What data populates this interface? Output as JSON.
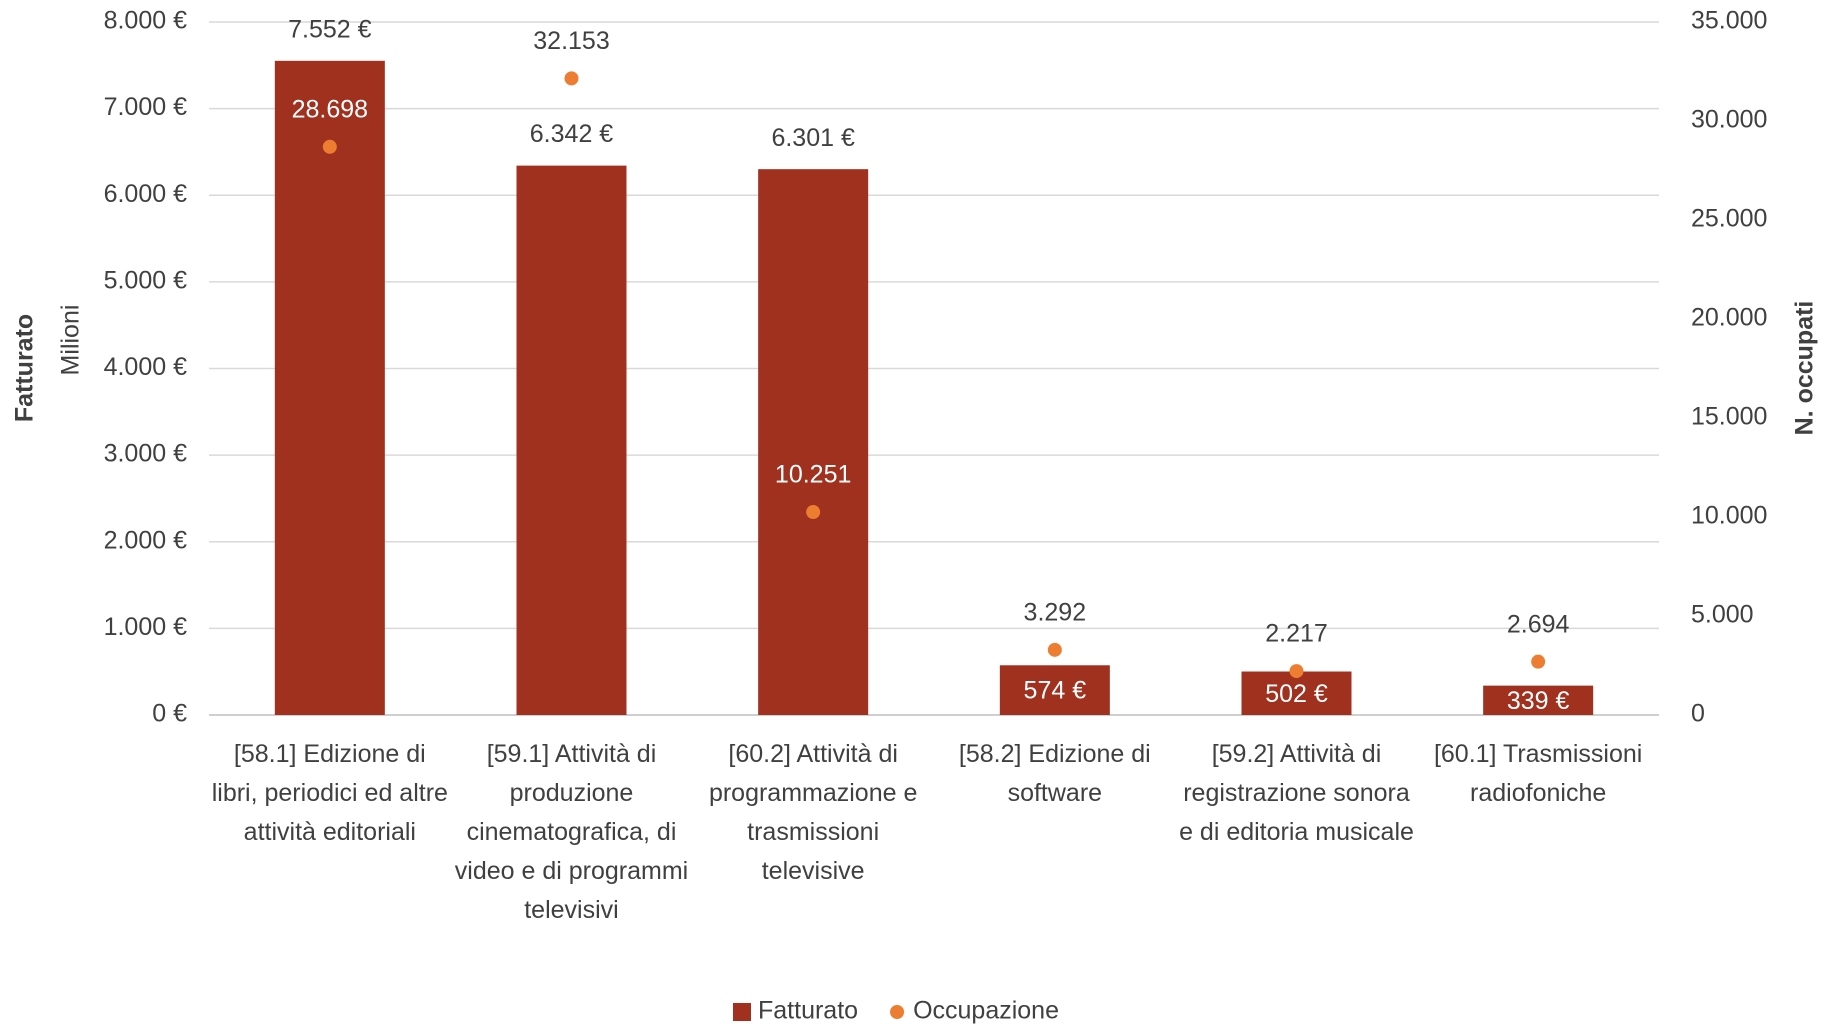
{
  "chart_data": {
    "type": "bar",
    "categories": [
      "[58.1] Edizione di libri, periodici ed altre attività editoriali",
      "[59.1] Attività di produzione cinematografica, di video e di programmi televisivi",
      "[60.2] Attività di programmazione e trasmissioni televisive",
      "[58.2] Edizione di software",
      "[59.2] Attività di registrazione sonora e di editoria musicale",
      "[60.1] Trasmissioni radiofoniche"
    ],
    "series": [
      {
        "name": "Fatturato",
        "type": "bar",
        "color": "#a0311e",
        "values": [
          7552,
          6342,
          6301,
          574,
          502,
          339
        ],
        "value_labels": [
          "7.552 €",
          "6.342 €",
          "6.301 €",
          "574 €",
          "502 €",
          "339 €"
        ]
      },
      {
        "name": "Occupazione",
        "type": "scatter",
        "axis": "y2",
        "color": "#ed7d31",
        "values": [
          28698,
          32153,
          10251,
          3292,
          2217,
          2694
        ],
        "value_labels": [
          "28.698",
          "32.153",
          "10.251",
          "3.292",
          "2.217",
          "2.694"
        ]
      }
    ],
    "ylabel": "Fatturato",
    "yunit": "Milioni",
    "y2label": "N. occupati",
    "ylim": [
      0,
      8000
    ],
    "yticks": [
      {
        "value": 0,
        "label": "0 €"
      },
      {
        "value": 1000,
        "label": "1.000 €"
      },
      {
        "value": 2000,
        "label": "2.000 €"
      },
      {
        "value": 3000,
        "label": "3.000 €"
      },
      {
        "value": 4000,
        "label": "4.000 €"
      },
      {
        "value": 5000,
        "label": "5.000 €"
      },
      {
        "value": 6000,
        "label": "6.000 €"
      },
      {
        "value": 7000,
        "label": "7.000 €"
      },
      {
        "value": 8000,
        "label": "8.000 €"
      }
    ],
    "y2lim": [
      0,
      35000
    ],
    "y2ticks": [
      0,
      {
        "value": 5000,
        "label": "5.000"
      },
      {
        "value": 10000,
        "label": "10.000"
      },
      {
        "value": 15000,
        "label": "15.000"
      },
      {
        "value": 20000,
        "label": "20.000"
      },
      {
        "value": 25000,
        "label": "25.000"
      },
      {
        "value": 30000,
        "label": "30.000"
      },
      {
        "value": 35000,
        "label": "35.000"
      }
    ],
    "grid": true,
    "legend": "bottom"
  }
}
